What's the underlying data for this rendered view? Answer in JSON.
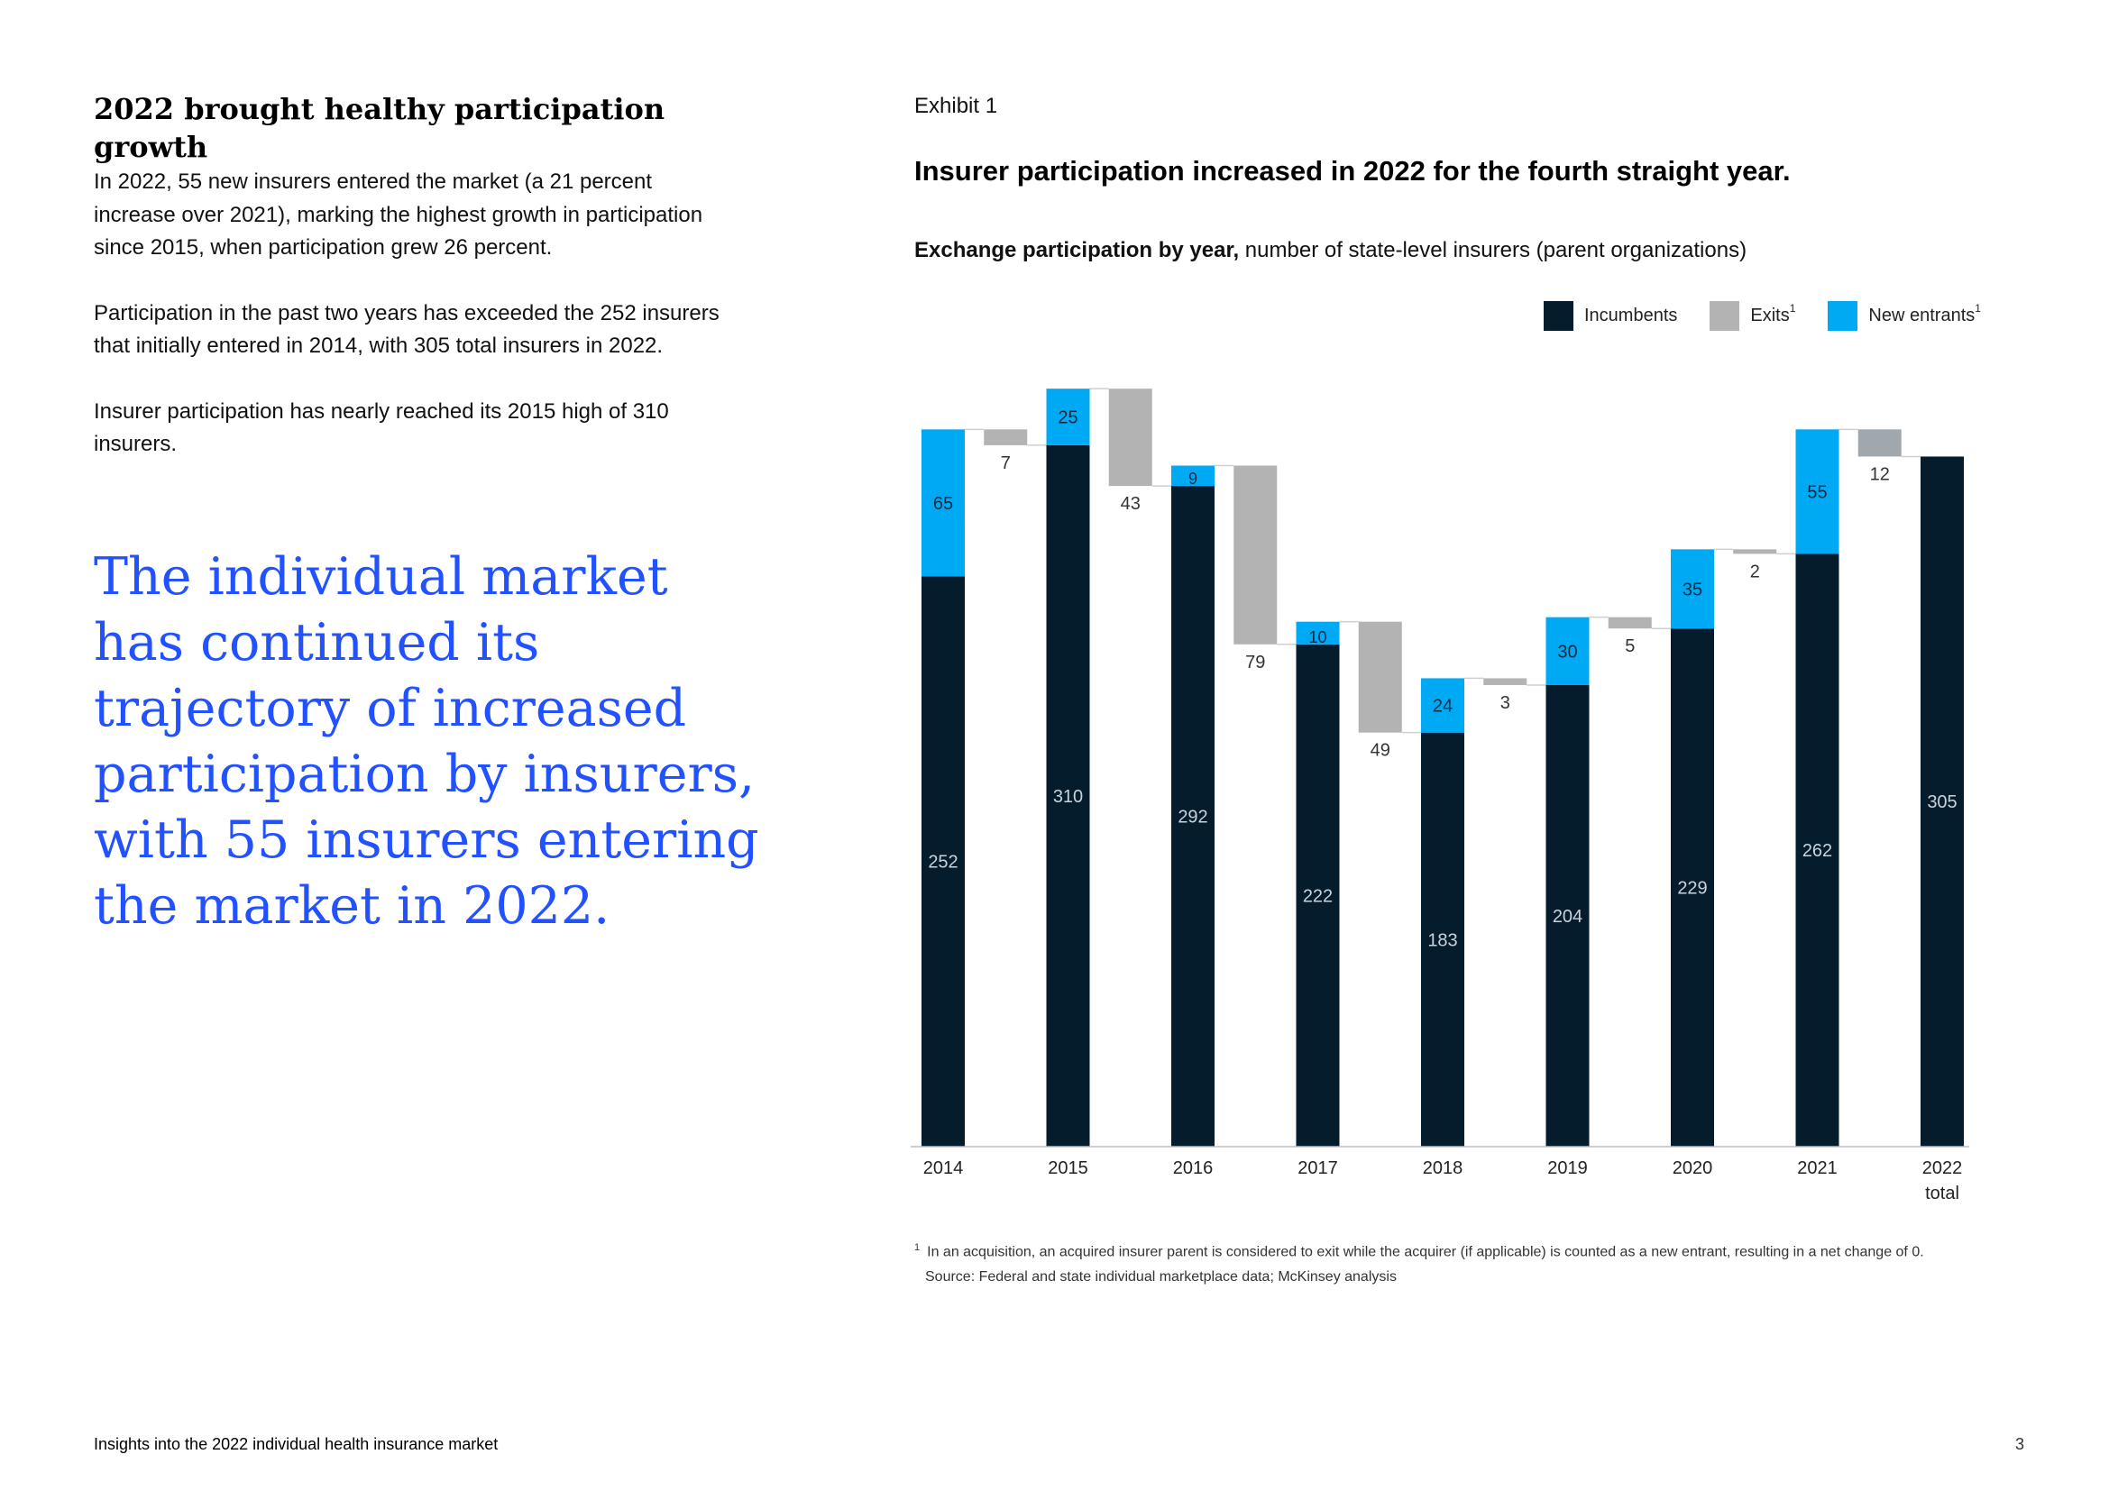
{
  "left": {
    "heading": "2022 brought healthy participation growth",
    "paragraphs": [
      "In 2022, 55 new insurers entered the market (a 21 percent increase over 2021), marking the highest growth in participation since 2015, when participation grew 26 percent.",
      "Participation in the past two years has exceeded the 252 insurers that initially entered in 2014, with 305 total insurers in 2022.",
      "Insurer participation has nearly reached its 2015 high of 310 insurers."
    ],
    "pullquote": "The individual market has continued its trajectory of increased participation by insurers, with 55 insurers entering the market in 2022."
  },
  "exhibit": {
    "label": "Exhibit 1",
    "title": "Insurer participation increased in 2022 for the fourth straight year.",
    "subtitle_bold": "Exchange participation by year,",
    "subtitle_rest": " number of state-level insurers (parent organizations)",
    "legend": [
      {
        "label": "Incumbents",
        "sup": "",
        "color": "#051c2c"
      },
      {
        "label": "Exits",
        "sup": "1",
        "color": "#b3b3b3"
      },
      {
        "label": "New entrants",
        "sup": "1",
        "color": "#00a9f4"
      }
    ],
    "footnote": "In an acquisition, an acquired insurer parent is considered to exit while the acquirer (if applicable) is counted as a new entrant, resulting in a net change of 0.",
    "footnote_marker": "1",
    "source": "Source: Federal and state individual marketplace data; McKinsey analysis"
  },
  "chart_data": {
    "type": "bar",
    "subtype": "waterfall",
    "categories": [
      "2014",
      "2015",
      "2016",
      "2017",
      "2018",
      "2019",
      "2020",
      "2021",
      "2022"
    ],
    "category_sublabels": [
      "",
      "",
      "",
      "",
      "",
      "",
      "",
      "",
      "total"
    ],
    "series": [
      {
        "name": "Incumbents",
        "values": [
          252,
          310,
          292,
          222,
          183,
          204,
          229,
          262,
          305
        ]
      },
      {
        "name": "New entrants",
        "values": [
          65,
          25,
          9,
          10,
          24,
          30,
          35,
          55,
          null
        ]
      },
      {
        "name": "Exits",
        "values": [
          7,
          43,
          79,
          49,
          3,
          5,
          2,
          12,
          null
        ]
      }
    ],
    "ylim": [
      0,
      335
    ],
    "colors": {
      "incumbents": "#051c2c",
      "exits": "#b3b3b3",
      "exits_last": "#a1a8ad",
      "new_entrants": "#00a9f4"
    },
    "legend_position": "top-right",
    "grid": false
  },
  "footer": {
    "left": "Insights into the 2022 individual health insurance market",
    "page": "3"
  }
}
